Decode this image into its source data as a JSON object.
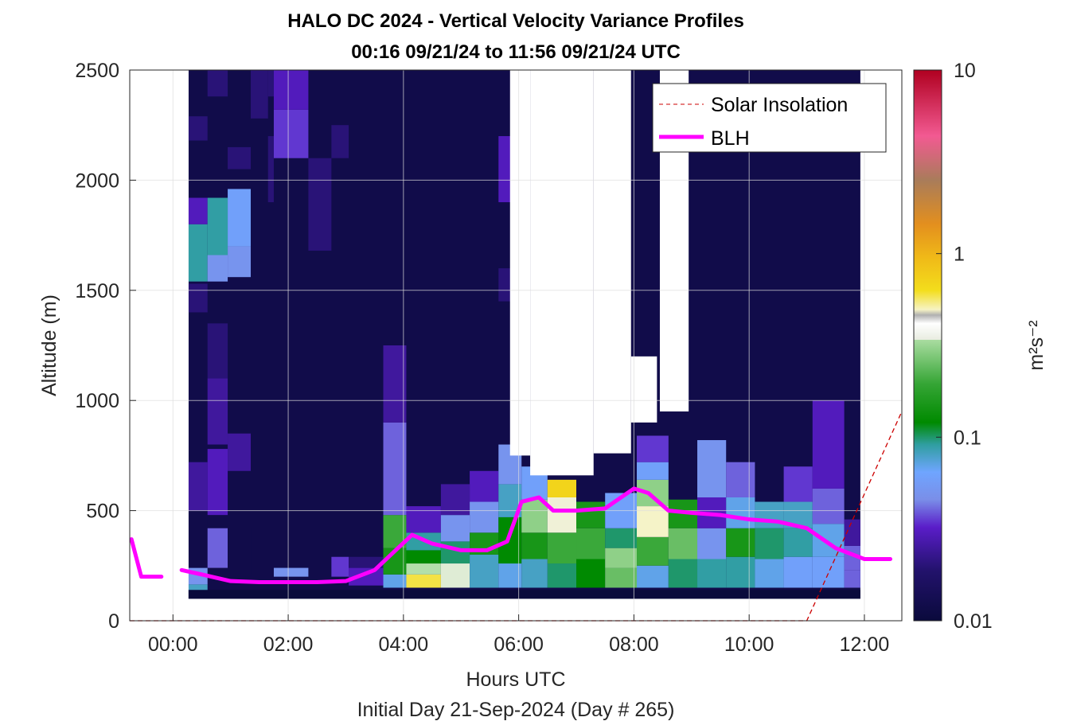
{
  "chart_data": {
    "type": "heatmap",
    "title": "HALO DC 2024 - Vertical Velocity Variance Profiles",
    "subtitle": "00:16 09/21/24 to 11:56 09/21/24  UTC",
    "xlabel": "Hours UTC",
    "xlabel2": "Initial Day 21-Sep-2024 (Day # 265)",
    "ylabel": "Altitude (m)",
    "colorbar_label": "m²s⁻²",
    "x_ticks": [
      "00:00",
      "02:00",
      "04:00",
      "06:00",
      "08:00",
      "10:00",
      "12:00"
    ],
    "y_ticks": [
      "0",
      "500",
      "1000",
      "1500",
      "2000",
      "2500"
    ],
    "colorbar_ticks": [
      "0.01",
      "0.1",
      "1",
      "10"
    ],
    "xlim_hours": [
      -0.75,
      12.65
    ],
    "ylim": [
      0,
      2500
    ],
    "color_scale": "log",
    "clim": [
      0.01,
      10
    ],
    "grid": true,
    "legend_position": "top-right",
    "legend": [
      {
        "name": "Solar Insolation",
        "color": "#cc0000",
        "style": "dashed"
      },
      {
        "name": "BLH",
        "color": "#ff00ff",
        "style": "solid"
      }
    ],
    "data_x_range_hours": [
      0.27,
      11.93
    ],
    "data_y_range_m": [
      100,
      2500
    ],
    "background_variance": 0.012,
    "profiles": [
      {
        "hour": 0.27,
        "bands": [
          [
            125,
            165,
            0.08
          ],
          [
            165,
            240,
            0.05
          ],
          [
            240,
            500,
            0.012
          ],
          [
            500,
            720,
            0.025
          ],
          [
            1400,
            1530,
            0.02
          ],
          [
            1540,
            1800,
            0.09
          ],
          [
            1800,
            1920,
            0.03
          ],
          [
            2180,
            2290,
            0.02
          ]
        ]
      },
      {
        "hour": 0.6,
        "bands": [
          [
            240,
            420,
            0.04
          ],
          [
            480,
            780,
            0.03
          ],
          [
            800,
            1100,
            0.025
          ],
          [
            1100,
            1350,
            0.02
          ],
          [
            1540,
            1660,
            0.05
          ],
          [
            1660,
            1920,
            0.09
          ],
          [
            2380,
            2500,
            0.02
          ]
        ]
      },
      {
        "hour": 0.95,
        "bands": [
          [
            200,
            420,
            0.012
          ],
          [
            680,
            850,
            0.025
          ],
          [
            1560,
            1700,
            0.05
          ],
          [
            1700,
            1960,
            0.06
          ],
          [
            2050,
            2150,
            0.02
          ]
        ]
      },
      {
        "hour": 1.35,
        "bands": [
          [
            2280,
            2500,
            0.02
          ]
        ]
      },
      {
        "hour": 1.65,
        "bands": [
          [
            1900,
            2200,
            0.02
          ],
          [
            2380,
            2500,
            0.02
          ]
        ]
      },
      {
        "hour": 1.75,
        "bands": [
          [
            200,
            240,
            0.05
          ],
          [
            2100,
            2320,
            0.035
          ],
          [
            2320,
            2500,
            0.03
          ]
        ]
      },
      {
        "hour": 2.35,
        "bands": [
          [
            1680,
            2100,
            0.02
          ]
        ]
      },
      {
        "hour": 2.75,
        "bands": [
          [
            200,
            290,
            0.035
          ],
          [
            2100,
            2250,
            0.02
          ]
        ]
      },
      {
        "hour": 3.05,
        "bands": [
          [
            160,
            240,
            0.03
          ],
          [
            240,
            290,
            0.02
          ]
        ]
      },
      {
        "hour": 3.65,
        "bands": [
          [
            150,
            210,
            0.07
          ],
          [
            210,
            330,
            0.15
          ],
          [
            330,
            480,
            0.2
          ],
          [
            480,
            900,
            0.04
          ],
          [
            900,
            1250,
            0.025
          ]
        ]
      },
      {
        "hour": 4.05,
        "bands": [
          [
            150,
            210,
            0.6
          ],
          [
            210,
            260,
            0.35
          ],
          [
            260,
            320,
            0.12
          ],
          [
            320,
            400,
            0.09
          ],
          [
            400,
            520,
            0.03
          ]
        ]
      },
      {
        "hour": 4.65,
        "bands": [
          [
            150,
            260,
            0.4
          ],
          [
            260,
            360,
            0.1
          ],
          [
            360,
            480,
            0.05
          ],
          [
            480,
            620,
            0.025
          ]
        ]
      },
      {
        "hour": 5.15,
        "bands": [
          [
            150,
            300,
            0.08
          ],
          [
            300,
            400,
            0.15
          ],
          [
            400,
            540,
            0.05
          ],
          [
            540,
            680,
            0.03
          ]
        ]
      },
      {
        "hour": 5.65,
        "bands": [
          [
            150,
            260,
            0.07
          ],
          [
            260,
            470,
            0.12
          ],
          [
            470,
            620,
            0.08
          ],
          [
            620,
            800,
            0.05
          ],
          [
            1450,
            1600,
            0.02
          ],
          [
            1900,
            2200,
            0.03
          ]
        ]
      },
      {
        "hour": 6.05,
        "bands": [
          [
            150,
            280,
            0.08
          ],
          [
            280,
            400,
            0.15
          ],
          [
            400,
            550,
            0.3
          ],
          [
            550,
            700,
            0.06
          ]
        ]
      },
      {
        "hour": 6.5,
        "bands": [
          [
            150,
            260,
            0.1
          ],
          [
            260,
            400,
            0.2
          ],
          [
            400,
            560,
            0.45
          ],
          [
            560,
            640,
            0.7
          ]
        ]
      },
      {
        "hour": 7.0,
        "bands": [
          [
            150,
            280,
            0.12
          ],
          [
            280,
            420,
            0.2
          ],
          [
            420,
            540,
            0.15
          ]
        ]
      },
      {
        "hour": 7.5,
        "bands": [
          [
            150,
            240,
            0.25
          ],
          [
            240,
            330,
            0.3
          ],
          [
            330,
            420,
            0.1
          ],
          [
            420,
            580,
            0.06
          ]
        ]
      },
      {
        "hour": 8.05,
        "bands": [
          [
            150,
            250,
            0.07
          ],
          [
            250,
            380,
            0.2
          ],
          [
            380,
            520,
            0.5
          ],
          [
            520,
            640,
            0.3
          ],
          [
            640,
            720,
            0.06
          ],
          [
            720,
            840,
            0.035
          ]
        ]
      },
      {
        "hour": 8.6,
        "bands": [
          [
            150,
            280,
            0.1
          ],
          [
            280,
            420,
            0.25
          ],
          [
            420,
            550,
            0.15
          ]
        ]
      },
      {
        "hour": 9.1,
        "bands": [
          [
            150,
            280,
            0.09
          ],
          [
            280,
            420,
            0.05
          ],
          [
            420,
            560,
            0.03
          ],
          [
            560,
            820,
            0.05
          ]
        ]
      },
      {
        "hour": 9.6,
        "bands": [
          [
            150,
            290,
            0.09
          ],
          [
            290,
            420,
            0.15
          ],
          [
            420,
            560,
            0.07
          ],
          [
            560,
            720,
            0.04
          ]
        ]
      },
      {
        "hour": 10.1,
        "bands": [
          [
            150,
            280,
            0.07
          ],
          [
            280,
            420,
            0.1
          ],
          [
            420,
            540,
            0.08
          ]
        ]
      },
      {
        "hour": 10.6,
        "bands": [
          [
            150,
            290,
            0.06
          ],
          [
            290,
            420,
            0.09
          ],
          [
            420,
            540,
            0.08
          ],
          [
            540,
            700,
            0.035
          ]
        ]
      },
      {
        "hour": 11.1,
        "bands": [
          [
            150,
            290,
            0.06
          ],
          [
            290,
            440,
            0.07
          ],
          [
            440,
            600,
            0.04
          ],
          [
            600,
            1000,
            0.03
          ]
        ]
      },
      {
        "hour": 11.65,
        "bands": [
          [
            150,
            230,
            0.04
          ],
          [
            230,
            340,
            0.04
          ],
          [
            340,
            460,
            0.025
          ]
        ]
      }
    ],
    "missing_regions": [
      {
        "x": [
          6.2,
          7.3
        ],
        "y": [
          660,
          2500
        ]
      },
      {
        "x": [
          7.3,
          7.95
        ],
        "y": [
          760,
          2500
        ]
      },
      {
        "x": [
          7.95,
          8.4
        ],
        "y": [
          900,
          1200
        ]
      },
      {
        "x": [
          8.45,
          8.95
        ],
        "y": [
          950,
          2500
        ]
      },
      {
        "x": [
          0.0,
          0.27
        ],
        "y": [
          100,
          2500
        ]
      },
      {
        "x": [
          5.85,
          6.2
        ],
        "y": [
          750,
          2500
        ]
      }
    ],
    "blh": {
      "x": [
        -0.72,
        -0.55,
        -0.2,
        0.15,
        0.5,
        1.0,
        1.5,
        2.0,
        2.5,
        3.0,
        3.5,
        4.15,
        4.5,
        5.0,
        5.45,
        5.8,
        6.05,
        6.35,
        6.6,
        7.0,
        7.5,
        8.0,
        8.25,
        8.6,
        9.0,
        9.5,
        10.0,
        10.5,
        11.0,
        11.5,
        12.0,
        12.45
      ],
      "y": [
        370,
        200,
        200,
        230,
        210,
        180,
        175,
        175,
        175,
        180,
        230,
        390,
        350,
        320,
        320,
        360,
        540,
        560,
        500,
        500,
        510,
        600,
        580,
        500,
        490,
        480,
        460,
        450,
        420,
        330,
        280,
        280
      ],
      "gaps": [
        3
      ]
    },
    "solar_insolation": {
      "x": [
        -0.75,
        11.0,
        12.65
      ],
      "y": [
        0,
        0,
        950
      ]
    }
  }
}
